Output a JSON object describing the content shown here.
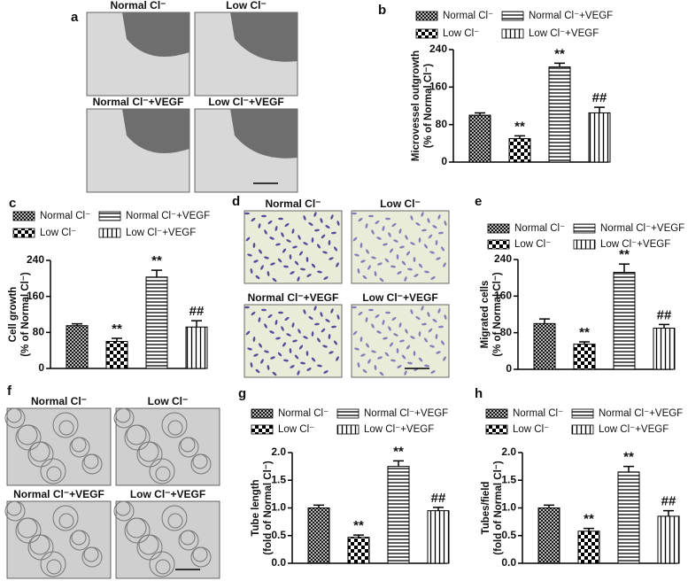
{
  "panel_letters": [
    "a",
    "b",
    "c",
    "d",
    "e",
    "f",
    "g",
    "h"
  ],
  "images": {
    "a": [
      "Normal Cl⁻",
      "Low Cl⁻",
      "Normal Cl⁻+VEGF",
      "Low Cl⁻+VEGF"
    ],
    "d": [
      "Normal Cl⁻",
      "Low Cl⁻",
      "Normal Cl⁻+VEGF",
      "Low Cl⁻+VEGF"
    ],
    "f": [
      "Normal Cl⁻",
      "Low Cl⁻",
      "Normal Cl⁻+VEGF",
      "Low Cl⁻+VEGF"
    ]
  },
  "chart_data": [
    {
      "type": "bar",
      "ylabel": [
        "Microvessel outgrowth",
        "(% of Normal Cl⁻)"
      ],
      "categories": [
        "Normal Cl⁻",
        "Low Cl⁻",
        "Normal Cl⁻+VEGF",
        "Low Cl⁻+VEGF"
      ],
      "values": [
        100,
        50,
        203,
        105
      ],
      "errors": [
        5,
        6,
        8,
        12
      ],
      "annotations": [
        null,
        "**",
        "**",
        "##"
      ],
      "ylim": [
        0,
        240
      ],
      "yticks": [
        0,
        80,
        160,
        240
      ]
    },
    {
      "type": "bar",
      "ylabel": [
        "Cell growth",
        "(% of Normal Cl⁻)"
      ],
      "categories": [
        "Normal Cl⁻",
        "Low Cl⁻",
        "Normal Cl⁻+VEGF",
        "Low Cl⁻+VEGF"
      ],
      "values": [
        95,
        60,
        203,
        92
      ],
      "errors": [
        4,
        7,
        15,
        14
      ],
      "annotations": [
        null,
        "**",
        "**",
        "##"
      ],
      "ylim": [
        0,
        240
      ],
      "yticks": [
        0,
        80,
        160,
        240
      ]
    },
    {
      "type": "bar",
      "ylabel": [
        "Migrated cells",
        "(% of Normal Cl⁻)"
      ],
      "categories": [
        "Normal Cl⁻",
        "Low Cl⁻",
        "Normal Cl⁻+VEGF",
        "Low Cl⁻+VEGF"
      ],
      "values": [
        100,
        55,
        212,
        90
      ],
      "errors": [
        10,
        5,
        18,
        8
      ],
      "annotations": [
        null,
        "**",
        "**",
        "##"
      ],
      "ylim": [
        0,
        240
      ],
      "yticks": [
        0,
        80,
        160,
        240
      ]
    },
    {
      "type": "bar",
      "ylabel": [
        "Tube length",
        "(fold of Normal Cl⁻)"
      ],
      "categories": [
        "Normal Cl⁻",
        "Low Cl⁻",
        "Normal Cl⁻+VEGF",
        "Low Cl⁻+VEGF"
      ],
      "values": [
        1.0,
        0.47,
        1.75,
        0.95
      ],
      "errors": [
        0.05,
        0.04,
        0.1,
        0.06
      ],
      "annotations": [
        null,
        "**",
        "**",
        "##"
      ],
      "ylim": [
        0,
        2
      ],
      "yticks": [
        {
          "value": 0,
          "label": "0.0"
        },
        0.5,
        {
          "value": 1,
          "label": "1.0"
        },
        1.5,
        {
          "value": 2,
          "label": "2.0"
        }
      ]
    },
    {
      "type": "bar",
      "ylabel": [
        "Tubes/field",
        "(fold of Normal Cl⁻)"
      ],
      "categories": [
        "Normal Cl⁻",
        "Low Cl⁻",
        "Normal Cl⁻+VEGF",
        "Low Cl⁻+VEGF"
      ],
      "values": [
        1.0,
        0.58,
        1.65,
        0.85
      ],
      "errors": [
        0.05,
        0.05,
        0.1,
        0.1
      ],
      "annotations": [
        null,
        "**",
        "**",
        "##"
      ],
      "ylim": [
        0,
        2
      ],
      "yticks": [
        {
          "value": 0,
          "label": "0.0"
        },
        0.5,
        {
          "value": 1,
          "label": "1.0"
        },
        1.5,
        {
          "value": 2,
          "label": "2.0"
        }
      ]
    }
  ]
}
